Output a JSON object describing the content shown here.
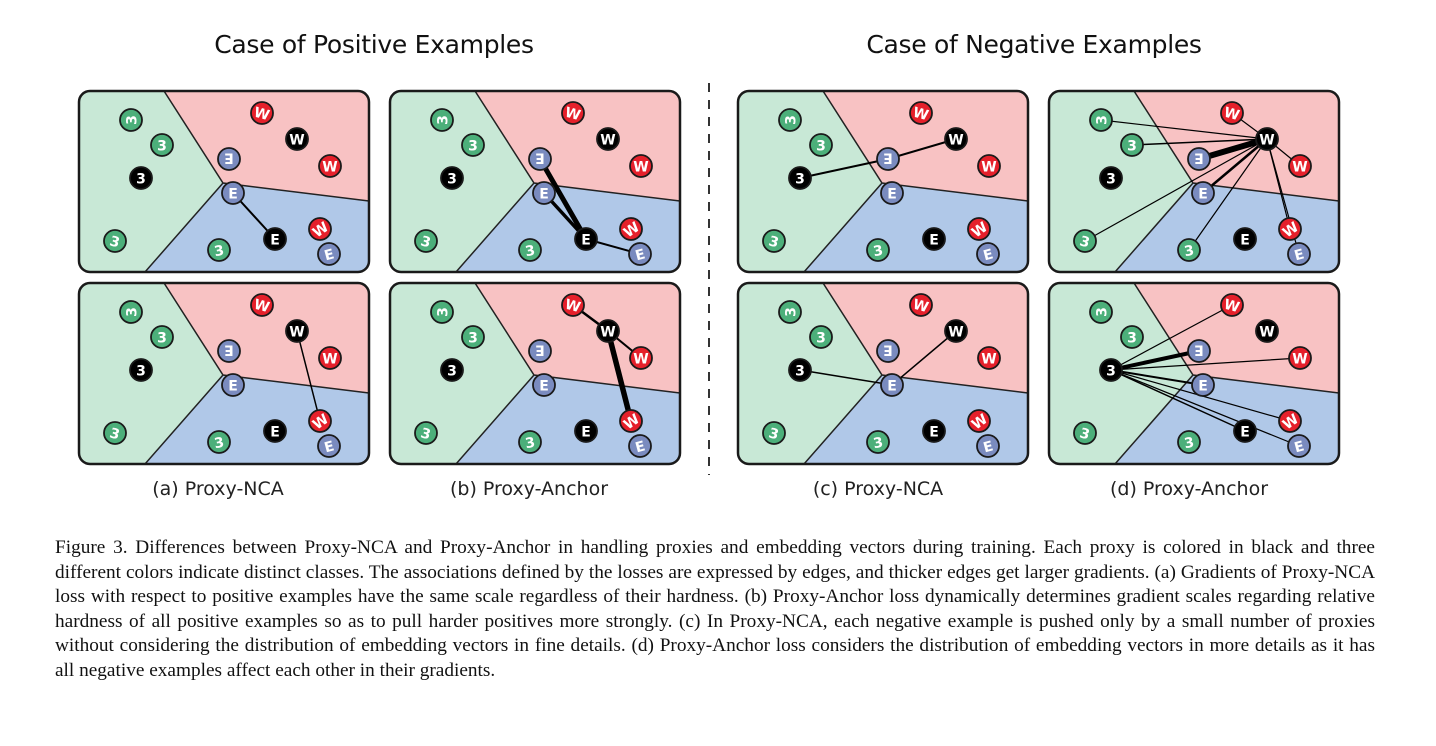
{
  "headings": {
    "positive": "Case of Positive Examples",
    "negative": "Case of Negative Examples"
  },
  "sublabels": [
    "(a) Proxy-NCA",
    "(b) Proxy-Anchor",
    "(c) Proxy-NCA",
    "(d) Proxy-Anchor"
  ],
  "caption": "Figure 3.   Differences between Proxy-NCA and Proxy-Anchor in handling proxies and embedding vectors during training. Each proxy is colored in black and three different colors indicate distinct classes. The associations defined by the losses are expressed by edges, and thicker edges get larger gradients. (a) Gradients of Proxy-NCA loss with respect to positive examples have the same scale regardless of their hardness. (b) Proxy-Anchor loss dynamically determines gradient scales regarding relative hardness of all positive examples so as to pull harder positives more strongly. (c) In Proxy-NCA, each negative example is pushed only by a small number of proxies without considering the distribution of embedding vectors in fine details. (d) Proxy-Anchor loss considers the distribution of embedding vectors in more details as it has all negative examples affect each other in their gradients.",
  "colors": {
    "green_region": "#c8e8d6",
    "red_region": "#f8c2c3",
    "blue_region": "#b0c8e8",
    "green_point": "#4caf7a",
    "red_point": "#e5202b",
    "blue_point": "#7a8bbf",
    "proxy": "#000000"
  },
  "glyphs": {
    "green": [
      "3",
      "3",
      "3",
      "3"
    ],
    "red": [
      "W",
      "W",
      "W"
    ],
    "blue": [
      "E",
      "E",
      "E",
      "E"
    ],
    "proxies": [
      "3",
      "W",
      "E"
    ]
  }
}
